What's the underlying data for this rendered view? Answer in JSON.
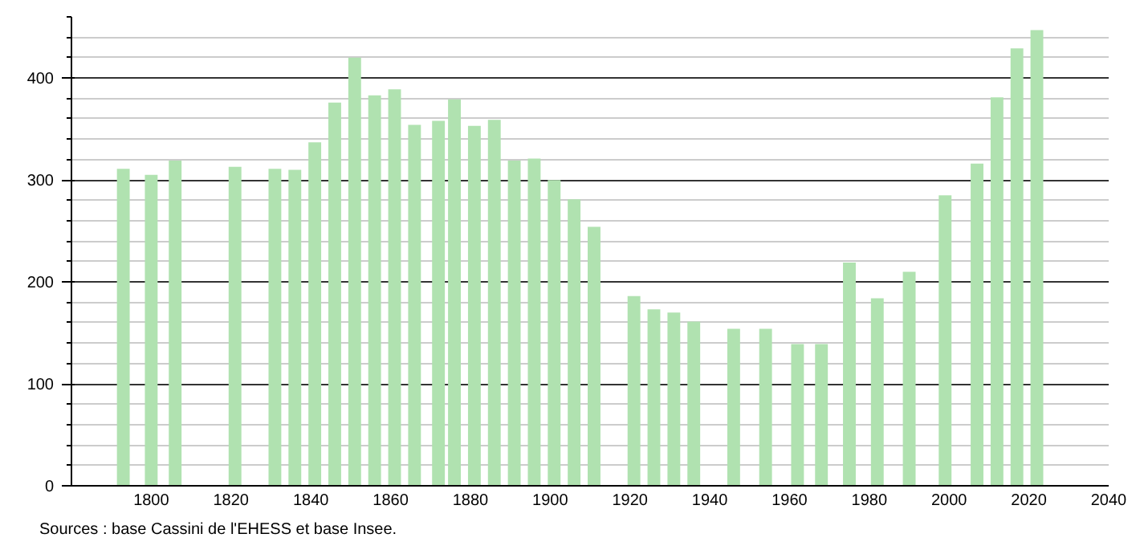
{
  "chart_data": {
    "type": "bar",
    "x": [
      1793,
      1800,
      1806,
      1821,
      1831,
      1836,
      1841,
      1846,
      1851,
      1856,
      1861,
      1866,
      1872,
      1876,
      1881,
      1886,
      1891,
      1896,
      1901,
      1906,
      1911,
      1921,
      1926,
      1931,
      1936,
      1946,
      1954,
      1962,
      1968,
      1975,
      1982,
      1990,
      1999,
      2007,
      2012,
      2017,
      2022
    ],
    "values": [
      311,
      305,
      319,
      313,
      311,
      310,
      337,
      376,
      420,
      383,
      389,
      354,
      358,
      379,
      353,
      359,
      319,
      321,
      300,
      281,
      254,
      186,
      173,
      170,
      161,
      154,
      154,
      139,
      139,
      219,
      184,
      210,
      285,
      316,
      381,
      429,
      447
    ],
    "color": "#b0e2b0",
    "xlim": [
      1780,
      2040
    ],
    "xticks": [
      1800,
      1820,
      1840,
      1860,
      1880,
      1900,
      1920,
      1940,
      1960,
      1980,
      2000,
      2020,
      2040
    ],
    "ylim": [
      0,
      460
    ],
    "yticks": [
      0,
      100,
      200,
      300,
      400
    ],
    "grid": "y",
    "annotations": [
      "Sources : base Cassini de l'EHESS et base Insee."
    ]
  }
}
